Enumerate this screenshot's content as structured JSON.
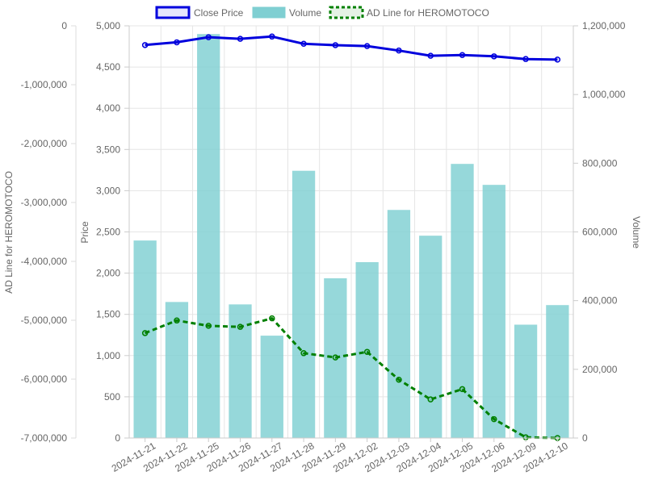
{
  "chart_data": {
    "type": "bar",
    "categories": [
      "2024-11-21",
      "2024-11-22",
      "2024-11-25",
      "2024-11-26",
      "2024-11-27",
      "2024-11-28",
      "2024-11-29",
      "2024-12-02",
      "2024-12-03",
      "2024-12-04",
      "2024-12-05",
      "2024-12-06",
      "2024-12-09",
      "2024-12-10"
    ],
    "legend": {
      "position": "top",
      "items": [
        "Close Price",
        "Volume",
        "AD Line for HEROMOTOCO"
      ]
    },
    "series": [
      {
        "name": "Close Price",
        "type": "line",
        "axis": "price",
        "color": "#0000dd",
        "values": [
          4767,
          4800,
          4862,
          4842,
          4870,
          4782,
          4765,
          4754,
          4700,
          4637,
          4645,
          4630,
          4597,
          4590
        ]
      },
      {
        "name": "Volume",
        "type": "bar",
        "axis": "volume",
        "color": "#7fcfd2",
        "values": [
          575000,
          396000,
          1176000,
          389000,
          298000,
          778000,
          465000,
          512000,
          664000,
          589000,
          798000,
          737000,
          330000,
          387000
        ]
      },
      {
        "name": "AD Line for HEROMOTOCO",
        "type": "line",
        "dashed": true,
        "axis": "ad",
        "color": "#008000",
        "values": [
          -5218000,
          -5004000,
          -5094000,
          -5112000,
          -4967000,
          -5559000,
          -5632000,
          -5537000,
          -6010000,
          -6344000,
          -6170000,
          -6680000,
          -6988000,
          -7000000
        ]
      }
    ],
    "axes": {
      "ad": {
        "title": "AD Line for HEROMOTOCO",
        "position": "left-outer",
        "range": [
          -7000000,
          0
        ],
        "ticks": [
          "0",
          "-1,000,000",
          "-2,000,000",
          "-3,000,000",
          "-4,000,000",
          "-5,000,000",
          "-6,000,000",
          "-7,000,000"
        ]
      },
      "price": {
        "title": "Price",
        "position": "left-inner",
        "range": [
          0,
          5000
        ],
        "ticks": [
          "5,000",
          "4,500",
          "4,000",
          "3,500",
          "3,000",
          "2,500",
          "2,000",
          "1,500",
          "1,000",
          "500",
          "0"
        ]
      },
      "volume": {
        "title": "Volume",
        "position": "right",
        "range": [
          0,
          1200000
        ],
        "ticks": [
          "1,200,000",
          "1,000,000",
          "800,000",
          "600,000",
          "400,000",
          "200,000",
          "0"
        ]
      }
    },
    "grid": true
  }
}
